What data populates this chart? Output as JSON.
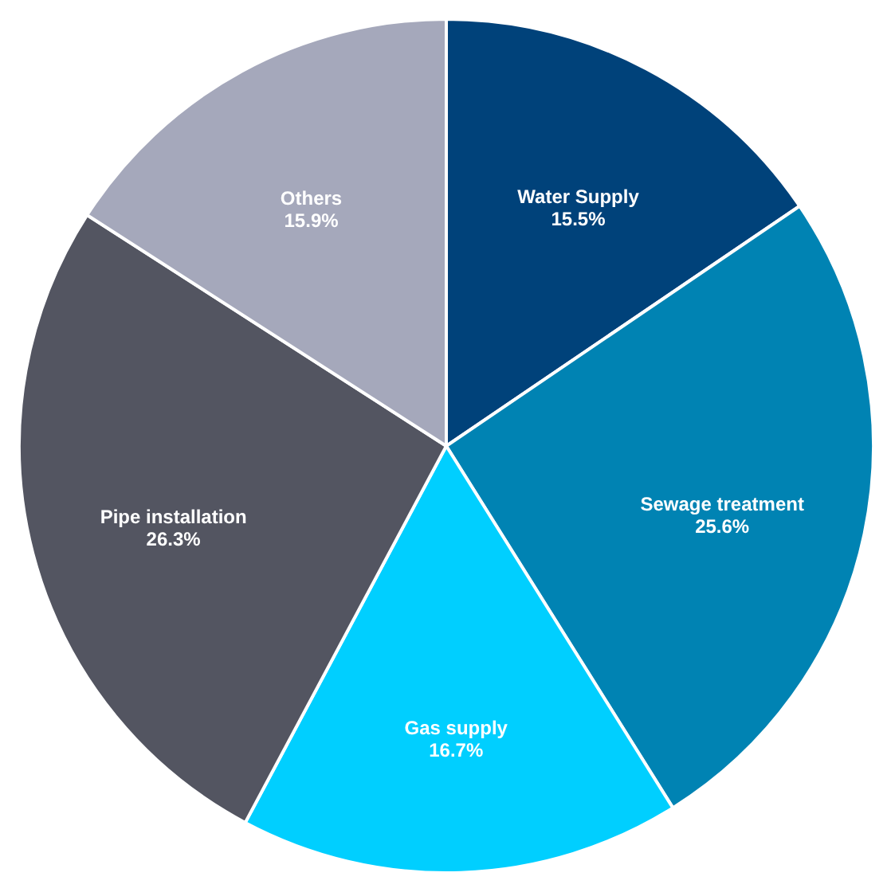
{
  "chart_data": {
    "type": "pie",
    "categories": [
      "Water Supply",
      "Sewage treatment",
      "Gas supply",
      "Pipe installation",
      "Others"
    ],
    "values": [
      15.5,
      25.6,
      16.7,
      26.3,
      15.9
    ],
    "value_labels": [
      "15.5%",
      "25.6%",
      "16.7%",
      "26.3%",
      "15.9%"
    ],
    "colors": [
      "#00427a",
      "#0083b3",
      "#00cfff",
      "#535561",
      "#a5a8bb"
    ]
  }
}
